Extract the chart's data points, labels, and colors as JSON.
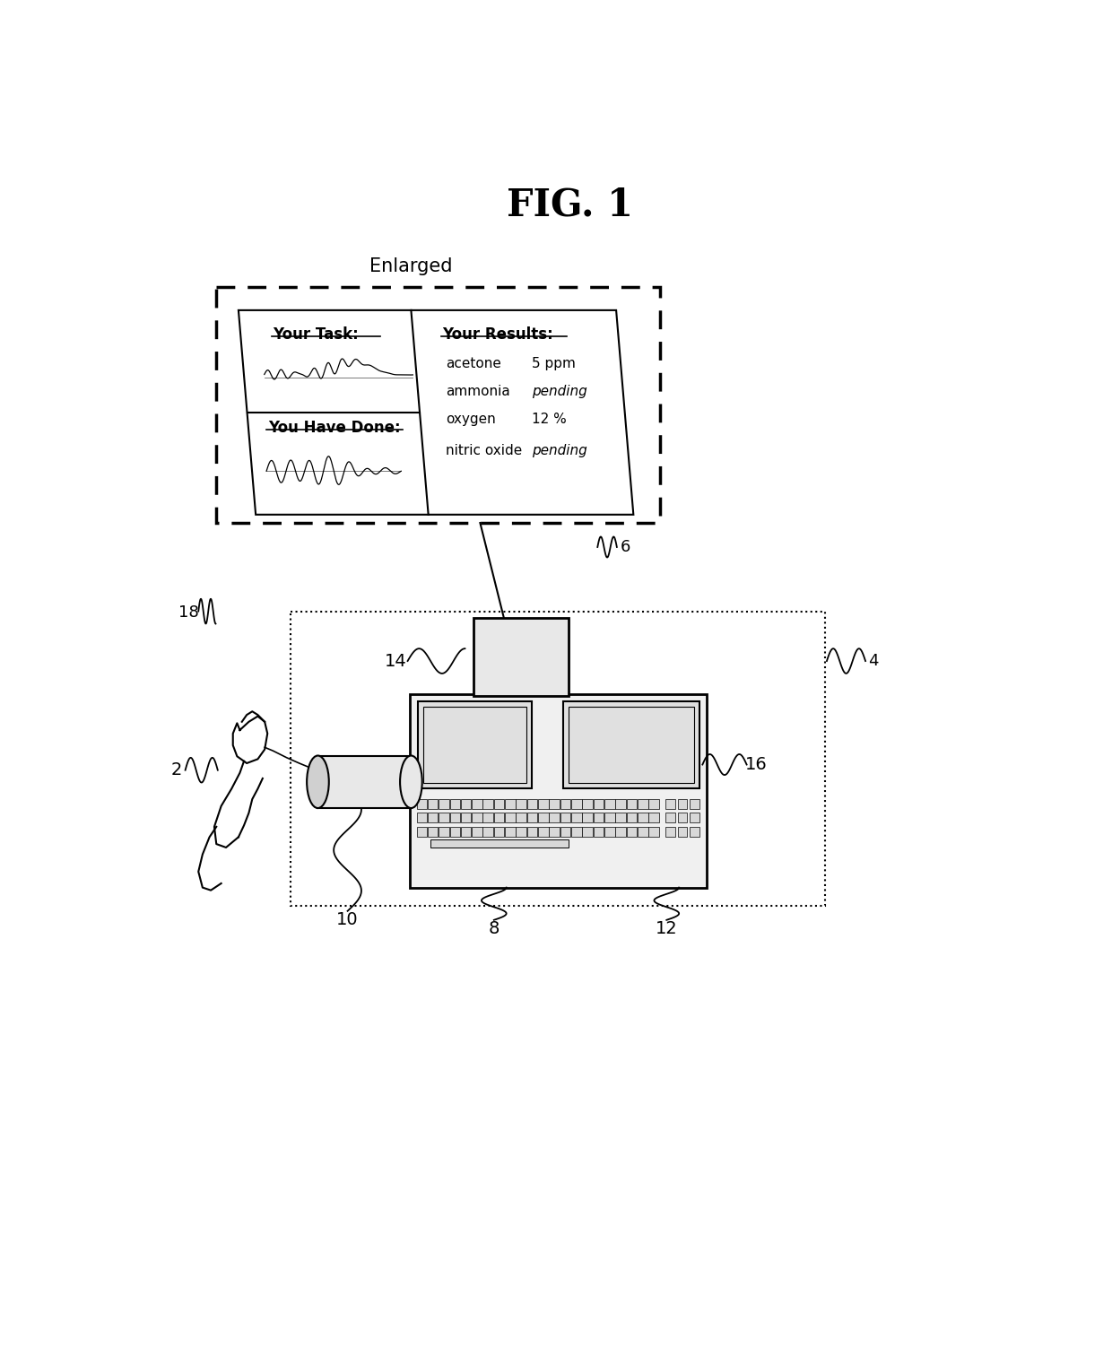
{
  "title": "FIG. 1",
  "title_fontsize": 30,
  "bg_color": "#ffffff",
  "fig_width": 12.4,
  "fig_height": 15.22,
  "enlarged_label": "Enlarged",
  "your_task_label": "Your Task:",
  "you_have_done_label": "You Have Done:",
  "your_results_label": "Your Results:",
  "results_data": [
    {
      "name": "acetone",
      "value": "5 ppm",
      "italic": false
    },
    {
      "name": "ammonia",
      "value": "pending",
      "italic": true
    },
    {
      "name": "oxygen",
      "value": "12 %",
      "italic": false
    },
    {
      "name": "nitric oxide",
      "value": "pending",
      "italic": true
    }
  ]
}
